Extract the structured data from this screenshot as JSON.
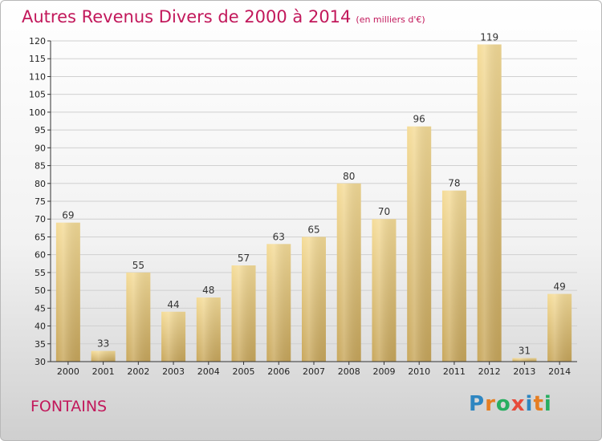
{
  "title": "Autres Revenus Divers de 2000 à 2014",
  "subtitle": "(en milliers d'€)",
  "place_name": "FONTAINS",
  "logo": {
    "text": "Proxiti",
    "letter_colors": [
      "#2e86c1",
      "#e67e22",
      "#27ae60",
      "#e74c3c",
      "#2e86c1",
      "#e67e22",
      "#27ae60"
    ]
  },
  "colors": {
    "title": "#c2185b",
    "bar_top": "#f5dc98",
    "bar_bottom": "#c8a75c",
    "axis_text": "#222222",
    "grid": "#d0d0d0"
  },
  "chart_data": {
    "type": "bar",
    "title": "Autres Revenus Divers de 2000 à 2014",
    "subtitle": "(en milliers d'€)",
    "categories": [
      "2000",
      "2001",
      "2002",
      "2003",
      "2004",
      "2005",
      "2006",
      "2007",
      "2008",
      "2009",
      "2010",
      "2011",
      "2012",
      "2013",
      "2014"
    ],
    "values": [
      69,
      33,
      55,
      44,
      48,
      57,
      63,
      65,
      80,
      70,
      96,
      78,
      119,
      31,
      49
    ],
    "ylim": [
      30,
      120
    ],
    "yticks": [
      30,
      35,
      40,
      45,
      50,
      55,
      60,
      65,
      70,
      75,
      80,
      85,
      90,
      95,
      100,
      105,
      110,
      115,
      120
    ],
    "grid": true,
    "xlabel": "",
    "ylabel": ""
  }
}
